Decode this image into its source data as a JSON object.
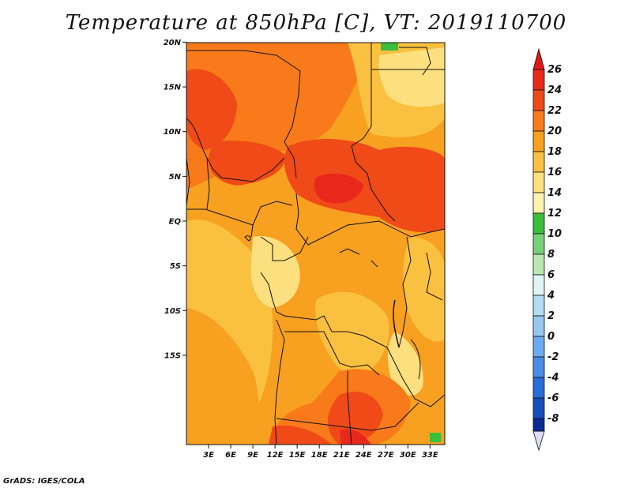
{
  "title": "Temperature at 850hPa [C], VT: 2019110700",
  "credit": "GrADS: IGES/COLA",
  "map": {
    "region": "Central Africa",
    "lon_range": [
      0,
      35
    ],
    "lat_range": [
      -20,
      25
    ],
    "lat_ticks": [
      {
        "value": 20,
        "label": "20N"
      },
      {
        "value": 15,
        "label": "15N"
      },
      {
        "value": 10,
        "label": "10N"
      },
      {
        "value": 5,
        "label": "5N"
      },
      {
        "value": 0,
        "label": "EQ"
      },
      {
        "value": -5,
        "label": "5S"
      },
      {
        "value": -10,
        "label": "10S"
      },
      {
        "value": -15,
        "label": "15S"
      }
    ],
    "lon_ticks": [
      {
        "value": 3,
        "label": "3E"
      },
      {
        "value": 6,
        "label": "6E"
      },
      {
        "value": 9,
        "label": "9E"
      },
      {
        "value": 12,
        "label": "12E"
      },
      {
        "value": 15,
        "label": "15E"
      },
      {
        "value": 18,
        "label": "18E"
      },
      {
        "value": 21,
        "label": "21E"
      },
      {
        "value": 24,
        "label": "24E"
      },
      {
        "value": 27,
        "label": "27E"
      },
      {
        "value": 30,
        "label": "30E"
      },
      {
        "value": 33,
        "label": "33E"
      }
    ]
  },
  "colorbar": {
    "levels": [
      {
        "label": "26",
        "color": "#e8281a"
      },
      {
        "label": "24",
        "color": "#f04a18"
      },
      {
        "label": "22",
        "color": "#f87a1a"
      },
      {
        "label": "20",
        "color": "#f8a020"
      },
      {
        "label": "18",
        "color": "#fac040"
      },
      {
        "label": "16",
        "color": "#fce080"
      },
      {
        "label": "14",
        "color": "#fdf3b0"
      },
      {
        "label": "12",
        "color": "#3cbe3c"
      },
      {
        "label": "10",
        "color": "#78d078"
      },
      {
        "label": "8",
        "color": "#b8e8b0"
      },
      {
        "label": "6",
        "color": "#e0f4f4"
      },
      {
        "label": "4",
        "color": "#b4dcf4"
      },
      {
        "label": "2",
        "color": "#96c8f0"
      },
      {
        "label": "0",
        "color": "#6eaaf0"
      },
      {
        "label": "-2",
        "color": "#4a8ce6"
      },
      {
        "label": "-4",
        "color": "#2a6cd8"
      },
      {
        "label": "-6",
        "color": "#184ebe"
      },
      {
        "label": "-8",
        "color": "#0a2a96"
      }
    ],
    "top_arrow_color": "#e01818",
    "bottom_arrow_color": "#dcdcf8"
  }
}
